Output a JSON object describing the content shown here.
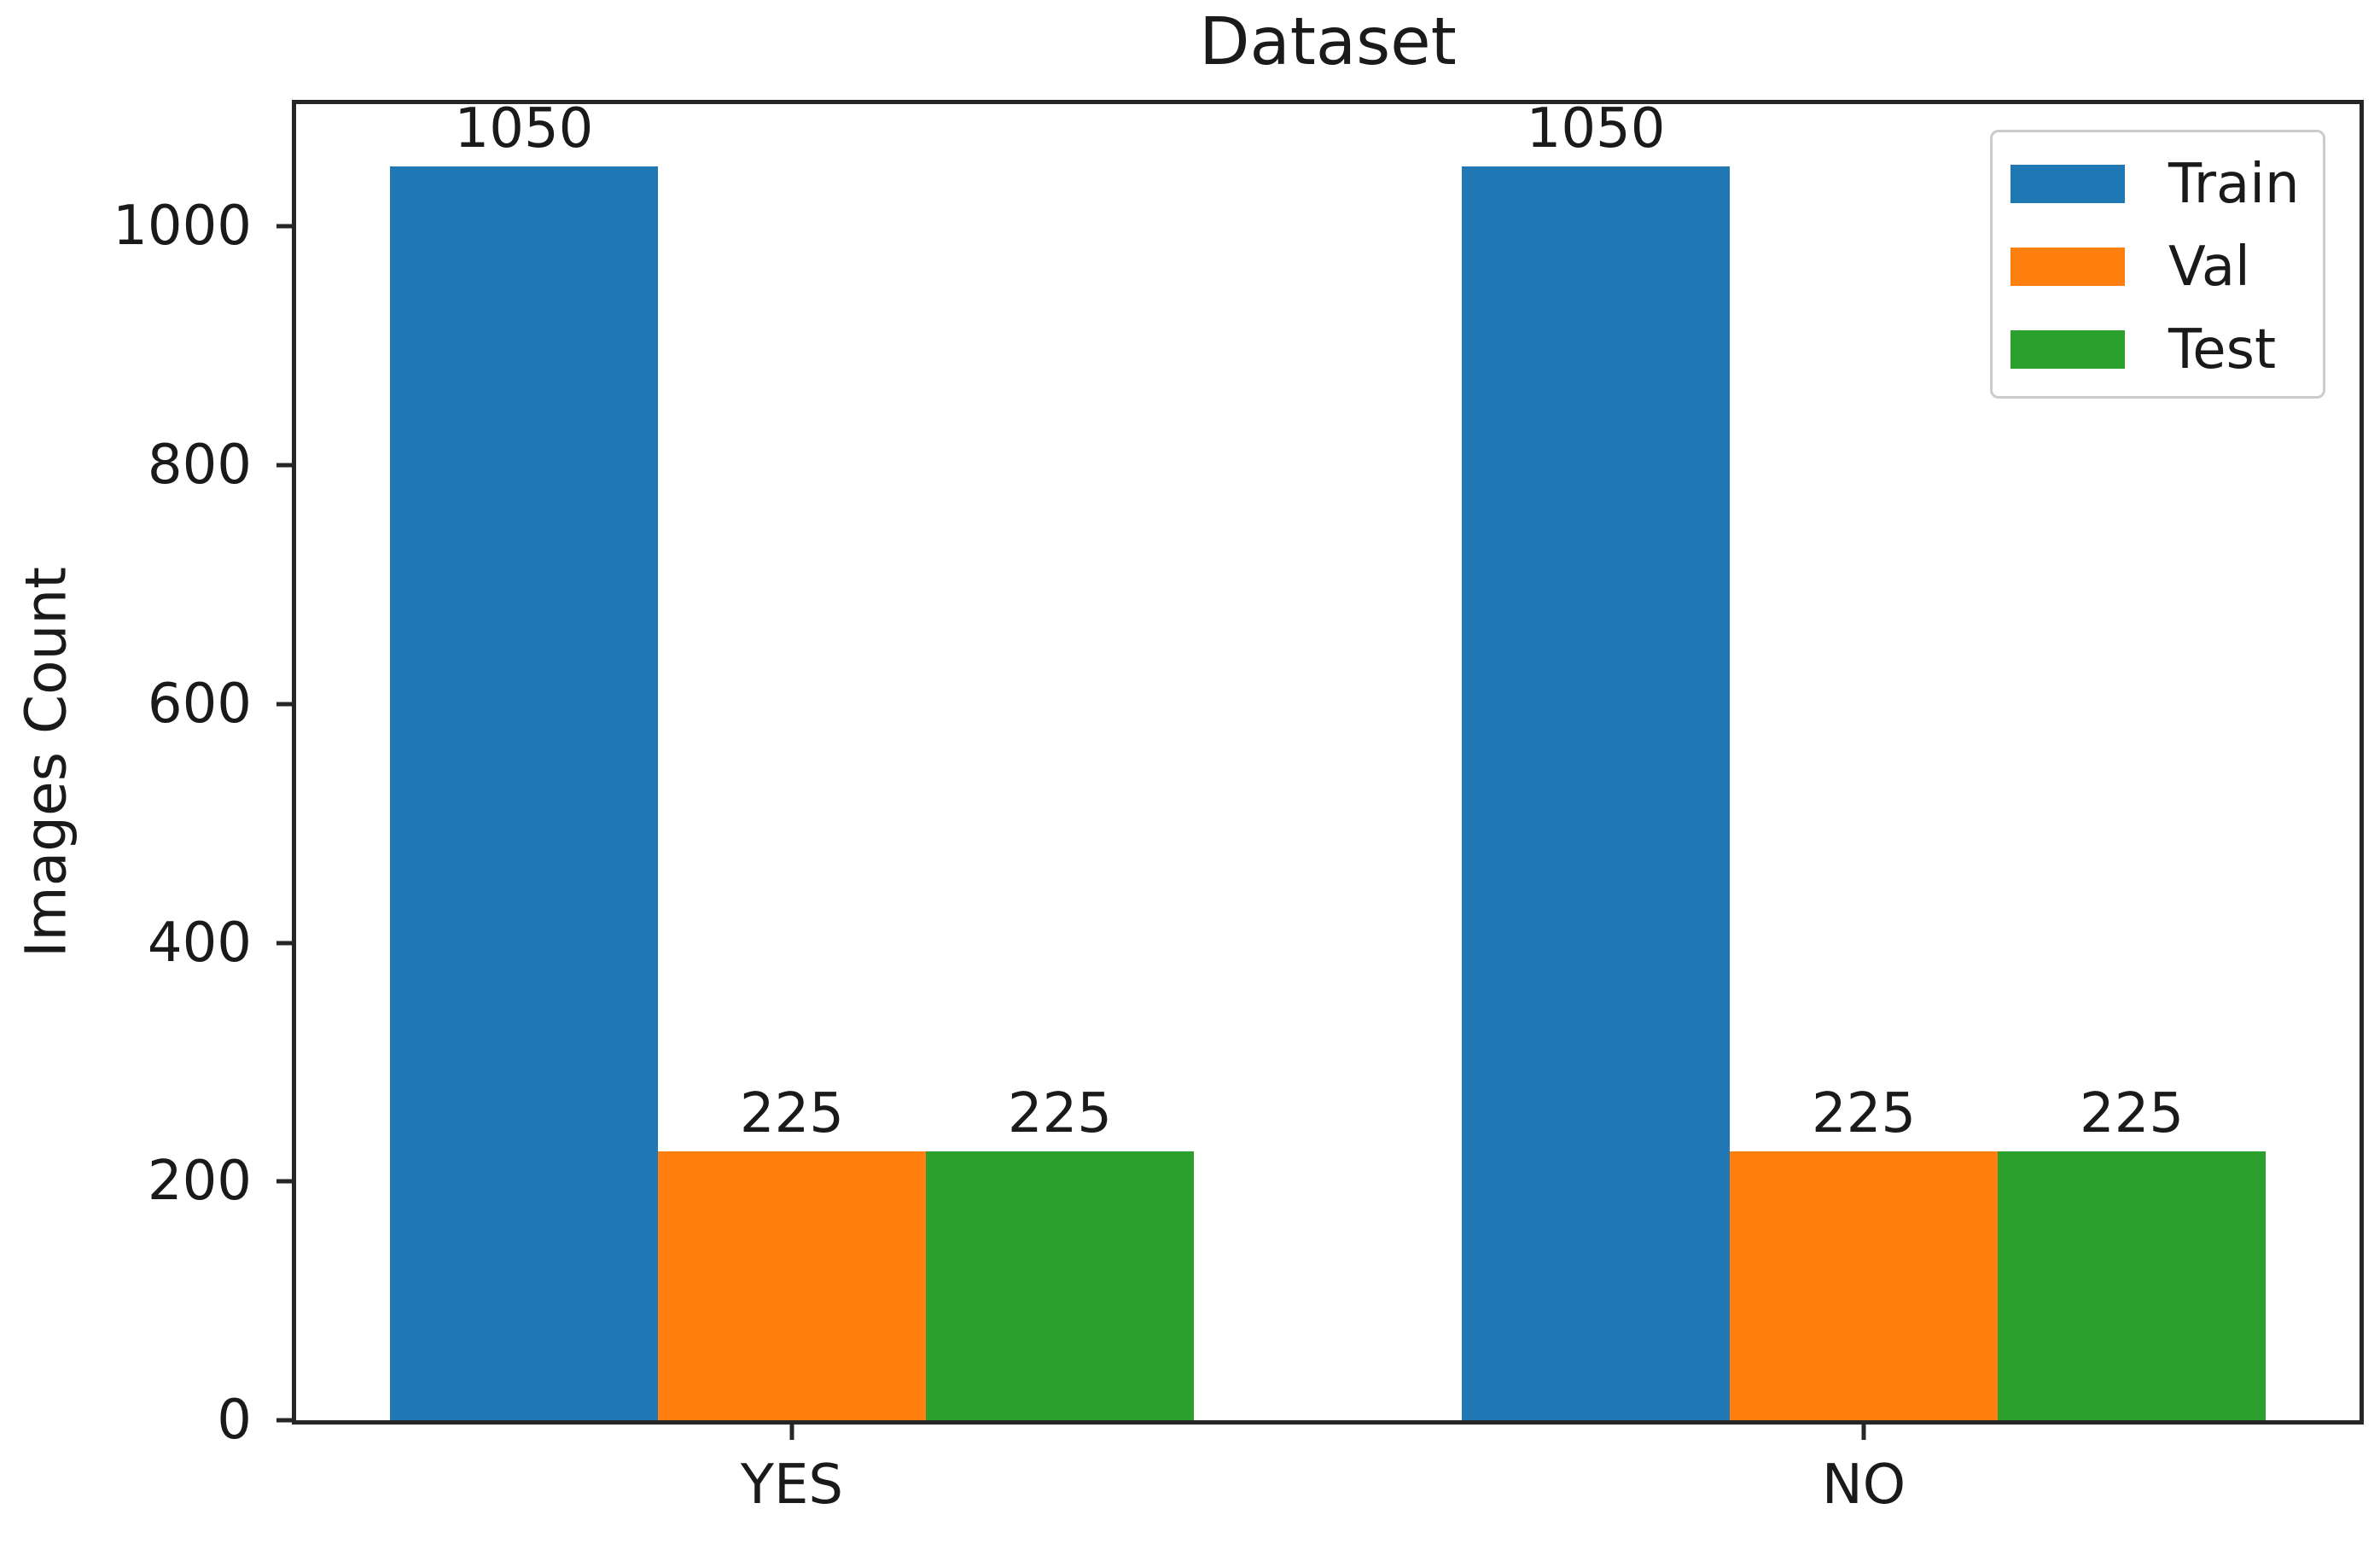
{
  "figure": {
    "background_color": "#ffffff",
    "axis_color": "#262626",
    "text_color": "#1a1a1a",
    "legend_border_color": "#cccccc"
  },
  "chart_data": {
    "type": "bar",
    "title": "Dataset",
    "xlabel": "",
    "ylabel": "Images Count",
    "categories": [
      "YES",
      "NO"
    ],
    "series": [
      {
        "name": "Train",
        "color": "#1f77b4",
        "values": [
          1050,
          1050
        ]
      },
      {
        "name": "Val",
        "color": "#ff7f0e",
        "values": [
          225,
          225
        ]
      },
      {
        "name": "Test",
        "color": "#2ca02c",
        "values": [
          225,
          225
        ]
      }
    ],
    "bar_value_labels": {
      "Train": [
        "1050",
        "1050"
      ],
      "Val": [
        "225",
        "225"
      ],
      "Test": [
        "225",
        "225"
      ]
    },
    "ylim": [
      0,
      1102.5
    ],
    "yticks": [
      0,
      200,
      400,
      600,
      800,
      1000
    ],
    "ytick_labels": [
      "0",
      "200",
      "400",
      "600",
      "800",
      "1000"
    ],
    "grid": false,
    "legend": {
      "position": "upper right",
      "entries": [
        "Train",
        "Val",
        "Test"
      ]
    }
  }
}
